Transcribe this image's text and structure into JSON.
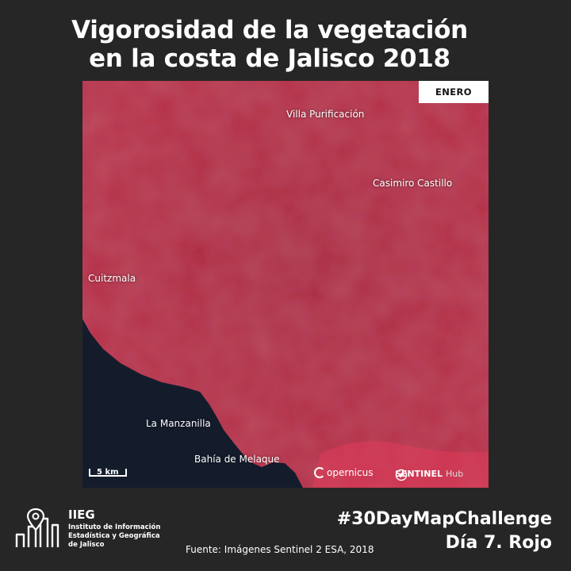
{
  "title": {
    "line1": "Vigorosidad de la vegetación",
    "line2": "en la costa de Jalisco 2018"
  },
  "map": {
    "month": "ENERO",
    "places": {
      "villa_purificacion": "Villa Purificación",
      "casimiro_castillo": "Casimiro Castillo",
      "cuitzmala": "Cuitzmala",
      "la_manzanilla": "La Manzanilla",
      "bahia_melaque": "Bahía de Melaque"
    },
    "scale_label": "5 km",
    "credits": {
      "copernicus": "opernicus",
      "sentinel_bold": "SENTINEL",
      "sentinel_light": "Hub"
    },
    "colors": {
      "vegetation": "#b8283e",
      "ocean": "#141c2c"
    }
  },
  "footer": {
    "org_acronym": "IIEG",
    "org_name_line1": "Instituto de Información",
    "org_name_line2": "Estadística y Geográfica",
    "org_name_line3": "de Jalisco",
    "source": "Fuente: Imágenes Sentinel 2 ESA, 2018",
    "hashtag": "#30DayMapChallenge",
    "day": "Día 7. Rojo"
  }
}
